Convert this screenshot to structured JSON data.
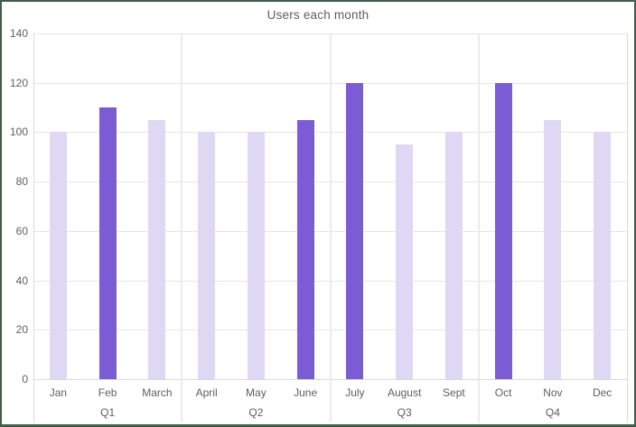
{
  "window": {
    "border_color": "#3e5e48",
    "background": "#ffffff"
  },
  "chart_data": {
    "type": "bar",
    "title": "Users each month",
    "categories": [
      "Jan",
      "Feb",
      "March",
      "April",
      "May",
      "June",
      "July",
      "August",
      "Sept",
      "Oct",
      "Nov",
      "Dec"
    ],
    "values": [
      100,
      110,
      105,
      100,
      100,
      105,
      120,
      95,
      100,
      120,
      105,
      100
    ],
    "highlighted": [
      false,
      true,
      false,
      false,
      false,
      true,
      true,
      false,
      false,
      true,
      false,
      false
    ],
    "group_labels": [
      "Q1",
      "Q2",
      "Q3",
      "Q4"
    ],
    "months_per_group": 3,
    "xlabel": "",
    "ylabel": "",
    "y_ticks": [
      0,
      20,
      40,
      60,
      80,
      100,
      120,
      140
    ],
    "ylim": [
      0,
      140
    ],
    "grid": true,
    "legend_position": "none",
    "colors": {
      "bar_default": "#ded8f4",
      "bar_highlight": "#7b5cd5",
      "gridline": "#e6e6e6",
      "separator": "#ebebeb",
      "plot_border": "#dadada",
      "text": "#5f5f5f"
    }
  }
}
